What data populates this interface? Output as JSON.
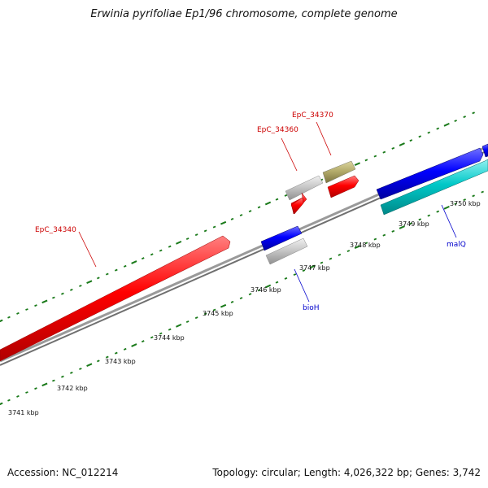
{
  "title": "Erwinia pyrifoliae Ep1/96 chromosome, complete genome",
  "footer": {
    "accession": "Accession: NC_012214",
    "stats": "Topology: circular; Length: 4,026,322 bp; Genes: 3,742"
  },
  "kbp_labels": [
    "3741 kbp",
    "3742 kbp",
    "3743 kbp",
    "3744 kbp",
    "3745 kbp",
    "3746 kbp",
    "3747 kbp",
    "3748 kbp",
    "3749 kbp",
    "3750 kbp"
  ],
  "gene_labels": {
    "EpC_34340": "EpC_34340",
    "EpC_34360": "EpC_34360",
    "EpC_34370": "EpC_34370",
    "bioH": "bioH",
    "malQ": "malQ"
  },
  "colors": {
    "backbone": "#808080",
    "tick": "#1a7a1a",
    "red_gene": "#ff0000",
    "blue_gene": "#0000ff",
    "cyan_gene": "#00c8c8",
    "gray_gene": "#c8c8c8",
    "olive_gene": "#b4ac6c",
    "label_red": "#cc0000",
    "label_blue": "#0000cc"
  }
}
